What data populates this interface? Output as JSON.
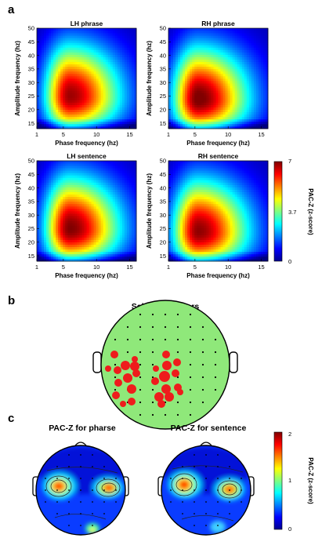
{
  "panel_letters": {
    "a": "a",
    "b": "b",
    "c": "c"
  },
  "chart_data": [
    {
      "type": "heatmap",
      "panel": "a",
      "title": "LH phrase",
      "xlabel": "Phase frequency (hz)",
      "ylabel": "Amplitude frequency (hz)",
      "xlim": [
        1,
        16
      ],
      "ylim": [
        13,
        50
      ],
      "xticks": [
        1,
        5,
        10,
        15
      ],
      "yticks": [
        15,
        20,
        25,
        30,
        35,
        40,
        45,
        50
      ],
      "peak": {
        "phase_hz": 6,
        "amplitude_hz": 25,
        "pacz": 6.5
      },
      "colorbar": {
        "label": "PAC-Z (z-score)",
        "range": [
          0,
          7
        ],
        "ticks": [
          "0",
          "3.7",
          "7"
        ]
      }
    },
    {
      "type": "heatmap",
      "panel": "a",
      "title": "RH phrase",
      "xlabel": "Phase frequency (hz)",
      "ylabel": "Amplitude frequency (hz)",
      "xlim": [
        1,
        16
      ],
      "ylim": [
        13,
        50
      ],
      "xticks": [
        1,
        5,
        10,
        15
      ],
      "yticks": [
        15,
        20,
        25,
        30,
        35,
        40,
        45,
        50
      ],
      "peak": {
        "phase_hz": 5.5,
        "amplitude_hz": 24,
        "pacz": 6.8
      },
      "colorbar": {
        "label": "PAC-Z (z-score)",
        "range": [
          0,
          7
        ],
        "ticks": [
          "0",
          "3.7",
          "7"
        ]
      }
    },
    {
      "type": "heatmap",
      "panel": "a",
      "title": "LH sentence",
      "xlabel": "Phase frequency (hz)",
      "ylabel": "Amplitude frequency (hz)",
      "xlim": [
        1,
        16
      ],
      "ylim": [
        13,
        50
      ],
      "xticks": [
        1,
        5,
        10,
        15
      ],
      "yticks": [
        15,
        20,
        25,
        30,
        35,
        40,
        45,
        50
      ],
      "peak": {
        "phase_hz": 6,
        "amplitude_hz": 25,
        "pacz": 6.7
      },
      "colorbar": {
        "label": "PAC-Z (z-score)",
        "range": [
          0,
          7
        ],
        "ticks": [
          "0",
          "3.7",
          "7"
        ]
      }
    },
    {
      "type": "heatmap",
      "panel": "a",
      "title": "RH sentence",
      "xlabel": "Phase frequency (hz)",
      "ylabel": "Amplitude frequency (hz)",
      "xlim": [
        1,
        16
      ],
      "ylim": [
        13,
        50
      ],
      "xticks": [
        1,
        5,
        10,
        15
      ],
      "yticks": [
        15,
        20,
        25,
        30,
        35,
        40,
        45,
        50
      ],
      "peak": {
        "phase_hz": 5.5,
        "amplitude_hz": 24,
        "pacz": 6.6
      },
      "colorbar": {
        "label": "PAC-Z (z-score)",
        "range": [
          0,
          7
        ],
        "ticks": [
          "0",
          "3.7",
          "7"
        ]
      }
    }
  ],
  "panel_a_colorbar": {
    "label": "PAC-Z (z-score)",
    "ticks": [
      "0",
      "3.7",
      "7"
    ]
  },
  "panel_b": {
    "title": "Selected sensors",
    "head_fill": "#8fe87a",
    "selected_color": "#ee1c1c"
  },
  "panel_c": {
    "maps": [
      {
        "title": "PAC-Z for pharse"
      },
      {
        "title": "PAC-Z for sentence"
      }
    ],
    "colorbar": {
      "label": "PAC-Z (z-score)",
      "range": [
        0,
        2
      ],
      "ticks": [
        "0",
        "1",
        "2"
      ]
    }
  },
  "colors": {
    "jet_low": "#00008f",
    "jet_high": "#800000"
  }
}
